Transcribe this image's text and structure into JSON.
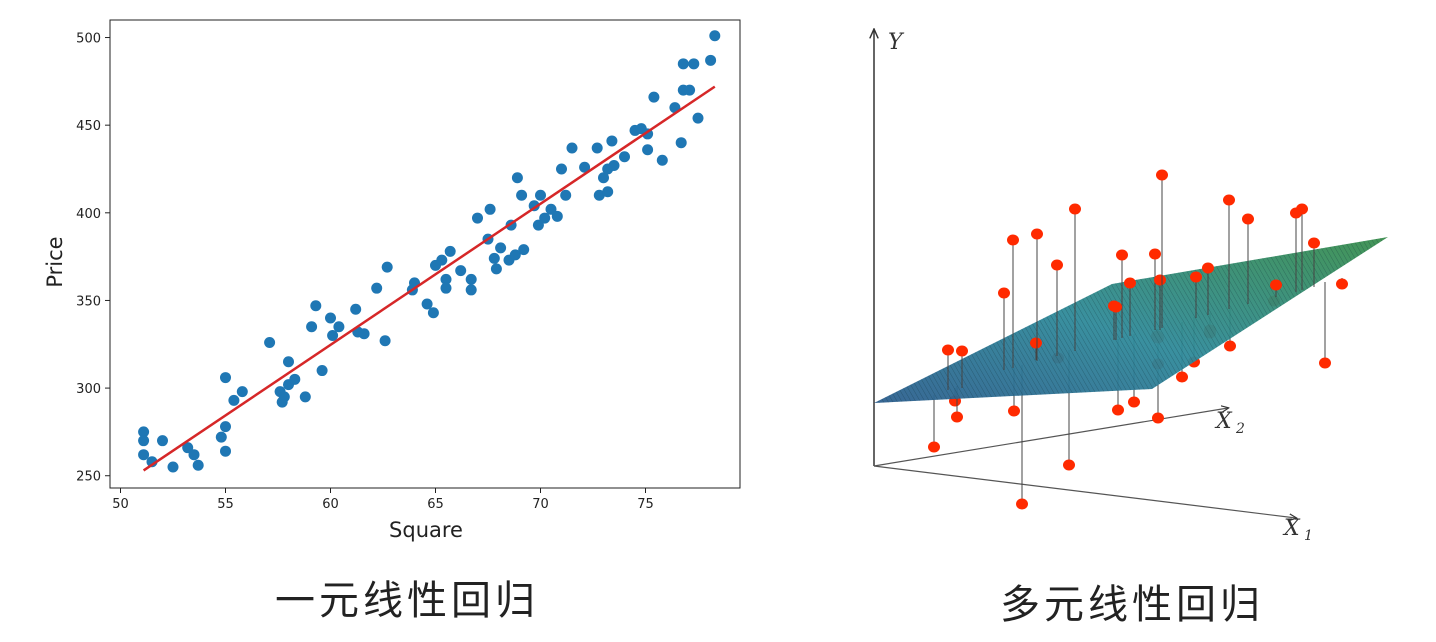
{
  "chart_data": [
    {
      "type": "scatter",
      "xlabel": "Square",
      "ylabel": "Price",
      "xlim": [
        49.5,
        79.5
      ],
      "ylim": [
        243,
        510
      ],
      "xticks": [
        50,
        55,
        60,
        65,
        70,
        75
      ],
      "yticks": [
        250,
        300,
        350,
        400,
        450,
        500
      ],
      "grid": false,
      "point_color": "#1f77b4",
      "line_color": "#d62728",
      "series": [
        {
          "type": "scatter",
          "points": [
            [
              51.1,
              275
            ],
            [
              51.1,
              270
            ],
            [
              51.1,
              262
            ],
            [
              51.5,
              258
            ],
            [
              52.0,
              270
            ],
            [
              52.5,
              255
            ],
            [
              53.2,
              266
            ],
            [
              53.5,
              262
            ],
            [
              53.7,
              256
            ],
            [
              54.8,
              272
            ],
            [
              55.0,
              278
            ],
            [
              55.0,
              264
            ],
            [
              55.0,
              306
            ],
            [
              55.4,
              293
            ],
            [
              55.8,
              298
            ],
            [
              57.1,
              326
            ],
            [
              57.6,
              298
            ],
            [
              57.7,
              292
            ],
            [
              57.8,
              295
            ],
            [
              58.0,
              315
            ],
            [
              58.0,
              302
            ],
            [
              58.3,
              305
            ],
            [
              58.8,
              295
            ],
            [
              59.1,
              335
            ],
            [
              59.3,
              347
            ],
            [
              59.6,
              310
            ],
            [
              60.0,
              340
            ],
            [
              60.1,
              330
            ],
            [
              60.4,
              335
            ],
            [
              61.2,
              345
            ],
            [
              61.3,
              332
            ],
            [
              61.6,
              331
            ],
            [
              62.2,
              357
            ],
            [
              62.6,
              327
            ],
            [
              62.7,
              369
            ],
            [
              63.9,
              356
            ],
            [
              64.0,
              360
            ],
            [
              64.6,
              348
            ],
            [
              64.9,
              343
            ],
            [
              65.0,
              370
            ],
            [
              65.3,
              373
            ],
            [
              65.5,
              362
            ],
            [
              65.5,
              357
            ],
            [
              65.7,
              378
            ],
            [
              66.2,
              367
            ],
            [
              66.7,
              362
            ],
            [
              66.7,
              356
            ],
            [
              67.0,
              397
            ],
            [
              67.5,
              385
            ],
            [
              67.6,
              402
            ],
            [
              67.8,
              374
            ],
            [
              67.9,
              368
            ],
            [
              68.1,
              380
            ],
            [
              68.5,
              373
            ],
            [
              68.6,
              393
            ],
            [
              68.8,
              376
            ],
            [
              68.9,
              420
            ],
            [
              69.1,
              410
            ],
            [
              69.2,
              379
            ],
            [
              69.7,
              404
            ],
            [
              69.9,
              393
            ],
            [
              70.0,
              410
            ],
            [
              70.2,
              397
            ],
            [
              70.5,
              402
            ],
            [
              70.8,
              398
            ],
            [
              71.0,
              425
            ],
            [
              71.2,
              410
            ],
            [
              71.5,
              437
            ],
            [
              72.1,
              426
            ],
            [
              72.7,
              437
            ],
            [
              72.8,
              410
            ],
            [
              73.0,
              420
            ],
            [
              73.2,
              425
            ],
            [
              73.2,
              412
            ],
            [
              73.4,
              441
            ],
            [
              73.5,
              427
            ],
            [
              74.0,
              432
            ],
            [
              74.5,
              447
            ],
            [
              74.8,
              448
            ],
            [
              75.1,
              445
            ],
            [
              75.1,
              436
            ],
            [
              75.4,
              466
            ],
            [
              75.8,
              430
            ],
            [
              76.4,
              460
            ],
            [
              76.7,
              440
            ],
            [
              76.8,
              485
            ],
            [
              76.8,
              470
            ],
            [
              77.1,
              470
            ],
            [
              77.3,
              485
            ],
            [
              77.5,
              454
            ],
            [
              78.1,
              487
            ],
            [
              78.3,
              501
            ]
          ]
        },
        {
          "type": "line",
          "points": [
            [
              51.1,
              253
            ],
            [
              78.3,
              472
            ]
          ]
        }
      ]
    },
    {
      "type": "3d-plane-scatter",
      "axes": [
        "Y",
        "X",
        "X"
      ],
      "axis_subscripts": [
        "",
        "2",
        "1"
      ],
      "point_color": "#ff2a00",
      "plane_color_from": "#2d6da0",
      "plane_color_to": "#2f8a4a",
      "point_count": 44
    }
  ],
  "captions": {
    "left": "一元线性回归",
    "right": "多元线性回归"
  }
}
